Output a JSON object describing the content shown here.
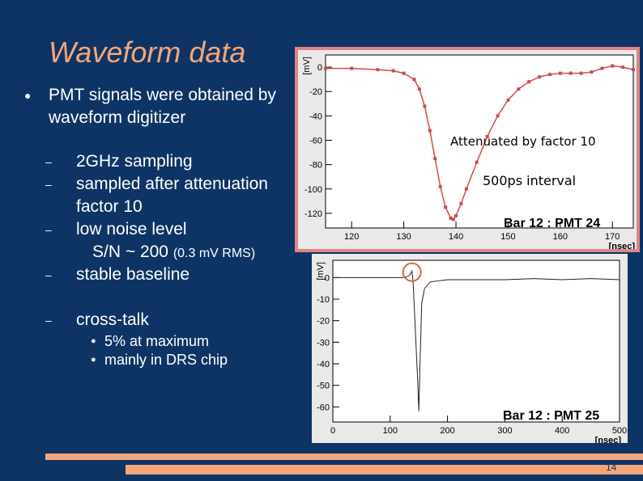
{
  "slide": {
    "title": "Waveform data",
    "bullet1": "PMT signals were obtained by waveform digitizer",
    "subitems": [
      "2GHz sampling",
      "sampled after attenuation",
      "factor 10",
      "low noise level",
      "S/N ~ 200",
      "(0.3 mV RMS)",
      "stable baseline",
      "cross-talk"
    ],
    "crosstalk_items": [
      "5% at maximum",
      "mainly in DRS chip"
    ],
    "page_number": "14"
  },
  "chart_data": [
    {
      "type": "line",
      "ylabel": "[mV]",
      "xlabel": "[nsec]",
      "x_ticks": [
        "120",
        "130",
        "140",
        "150",
        "160",
        "170"
      ],
      "y_ticks": [
        "0",
        "-20",
        "-40",
        "-60",
        "-80",
        "-100",
        "-120"
      ],
      "xlim": [
        115,
        174
      ],
      "ylim": [
        -132,
        10
      ],
      "annotations": [
        "Attenuated by factor 10",
        "500ps interval",
        "Bar 12 : PMT 24"
      ],
      "series": [
        {
          "x": [
            115,
            120,
            125,
            128,
            130,
            132,
            133,
            134,
            135,
            136,
            137,
            138,
            139,
            139.5,
            140,
            141,
            142,
            144,
            146,
            148,
            150,
            152,
            154,
            156,
            158,
            160,
            162,
            164,
            166,
            168,
            170,
            172,
            174
          ],
          "y": [
            -1,
            -1,
            -2,
            -3,
            -5,
            -10,
            -18,
            -32,
            -52,
            -75,
            -98,
            -115,
            -124,
            -125,
            -122,
            -112,
            -100,
            -78,
            -57,
            -40,
            -27,
            -18,
            -12,
            -8,
            -6,
            -5,
            -5,
            -5,
            -4,
            -1,
            1,
            0,
            -2
          ]
        }
      ]
    },
    {
      "type": "line",
      "ylabel": "[mV]",
      "xlabel": "[nsec]",
      "x_ticks": [
        "0",
        "100",
        "200",
        "300",
        "400",
        "500"
      ],
      "y_ticks": [
        "0",
        "-10",
        "-20",
        "-30",
        "-40",
        "-50",
        "-60"
      ],
      "xlim": [
        0,
        500
      ],
      "ylim": [
        -67,
        8
      ],
      "annotations": [
        "Bar 12 : PMT 25"
      ],
      "series": [
        {
          "x": [
            0,
            60,
            100,
            125,
            134,
            138,
            140,
            144,
            148,
            150,
            152,
            155,
            160,
            170,
            200,
            250,
            300,
            350,
            400,
            450,
            500
          ],
          "y": [
            0,
            0,
            0,
            0,
            1,
            3,
            -2,
            -25,
            -48,
            -62,
            -40,
            -12,
            -5,
            -2,
            -1,
            -1,
            -1,
            -0.5,
            -1,
            -0.5,
            -1
          ]
        }
      ]
    }
  ]
}
